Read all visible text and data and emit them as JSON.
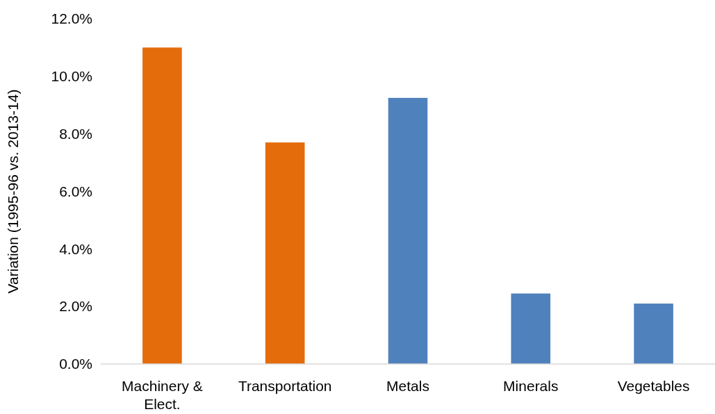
{
  "chart_data": {
    "type": "bar",
    "ylabel": "Variation (1995-96 vs. 2013-14)",
    "categories": [
      "Machinery & Elect.",
      "Transportation",
      "Metals",
      "Minerals",
      "Vegetables"
    ],
    "values": [
      11.0,
      7.7,
      9.25,
      2.45,
      2.1
    ],
    "colors": [
      "#e46c0a",
      "#e46c0a",
      "#4f81bd",
      "#4f81bd",
      "#4f81bd"
    ],
    "ylim": [
      0,
      12
    ],
    "yticks": [
      {
        "value": 0,
        "label": "0.0%"
      },
      {
        "value": 2,
        "label": "2.0%"
      },
      {
        "value": 4,
        "label": "4.0%"
      },
      {
        "value": 6,
        "label": "6.0%"
      },
      {
        "value": 8,
        "label": "8.0%"
      },
      {
        "value": 10,
        "label": "10.0%"
      },
      {
        "value": 12,
        "label": "12.0%"
      }
    ],
    "grid": false
  }
}
